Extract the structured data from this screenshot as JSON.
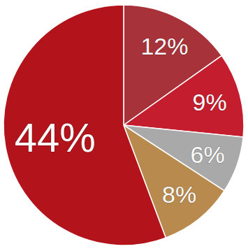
{
  "chart_data": {
    "type": "pie",
    "values": [
      12,
      9,
      6,
      8,
      44
    ],
    "value_labels": [
      "12%",
      "9%",
      "6%",
      "8%",
      "44%"
    ],
    "colors": [
      "#a8323a",
      "#c41e2e",
      "#a9a9a9",
      "#b98a4e",
      "#b3141c"
    ],
    "data_labels": true
  }
}
